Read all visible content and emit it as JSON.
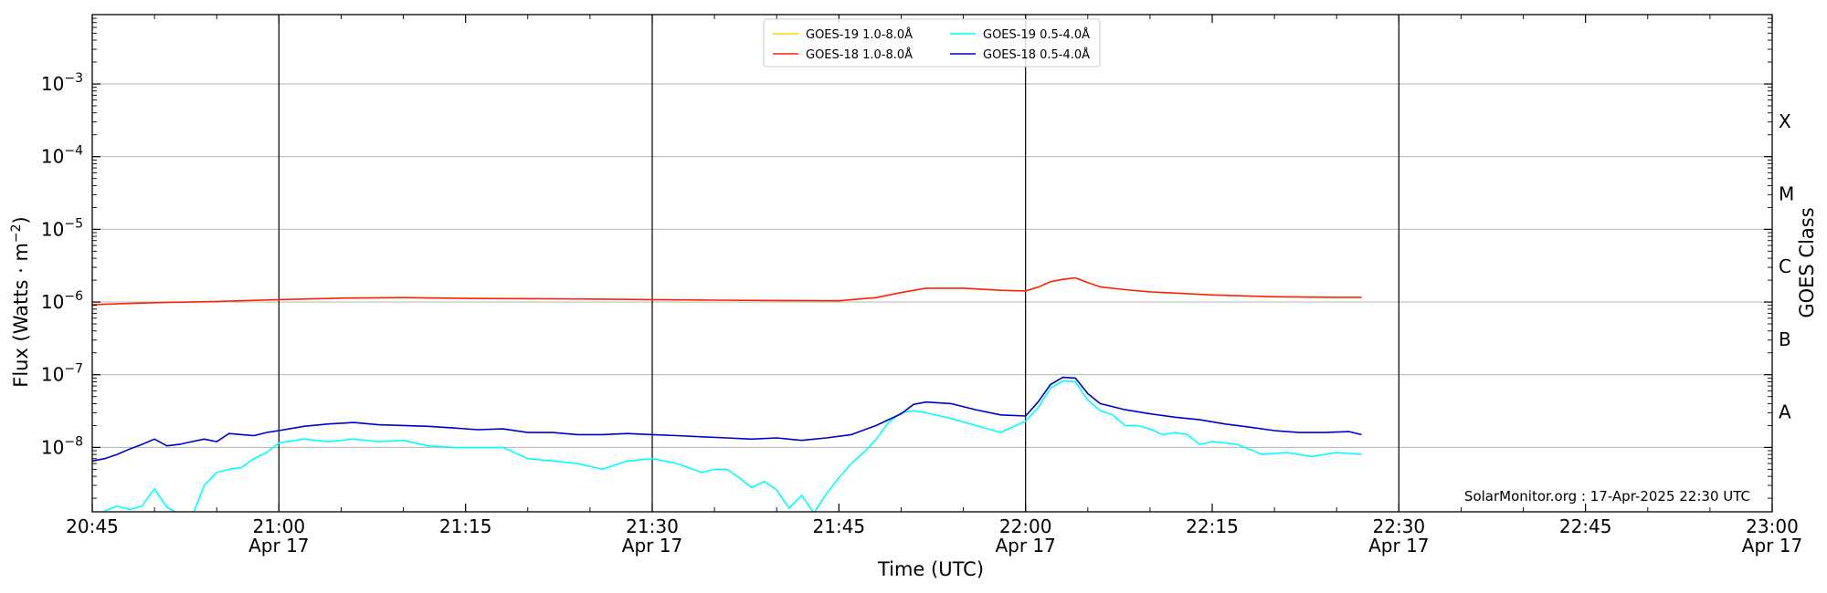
{
  "chart_data": {
    "type": "line",
    "xlabel": "Time (UTC)",
    "ylabel": "Flux (Watts · m⁻²)",
    "y2label": "GOES Class",
    "yscale": "log",
    "ylim": [
      1.3e-09,
      0.009
    ],
    "xlim": [
      "20:45",
      "23:00"
    ],
    "x_ticks": [
      {
        "t": "20:45",
        "line1": "20:45",
        "line2": ""
      },
      {
        "t": "21:00",
        "line1": "21:00",
        "line2": "Apr 17"
      },
      {
        "t": "21:15",
        "line1": "21:15",
        "line2": ""
      },
      {
        "t": "21:30",
        "line1": "21:30",
        "line2": "Apr 17"
      },
      {
        "t": "21:45",
        "line1": "21:45",
        "line2": ""
      },
      {
        "t": "22:00",
        "line1": "22:00",
        "line2": "Apr 17"
      },
      {
        "t": "22:15",
        "line1": "22:15",
        "line2": ""
      },
      {
        "t": "22:30",
        "line1": "22:30",
        "line2": "Apr 17"
      },
      {
        "t": "22:45",
        "line1": "22:45",
        "line2": ""
      },
      {
        "t": "23:00",
        "line1": "23:00",
        "line2": "Apr 17"
      }
    ],
    "y_ticks": [
      {
        "v": 1e-08,
        "base": "10",
        "exp": "−8"
      },
      {
        "v": 1e-07,
        "base": "10",
        "exp": "−7"
      },
      {
        "v": 1e-06,
        "base": "10",
        "exp": "−6"
      },
      {
        "v": 1e-05,
        "base": "10",
        "exp": "−5"
      },
      {
        "v": 0.0001,
        "base": "10",
        "exp": "−4"
      },
      {
        "v": 0.001,
        "base": "10",
        "exp": "−3"
      }
    ],
    "goes_classes": [
      {
        "label": "A",
        "v": 3.16e-08
      },
      {
        "label": "B",
        "v": 3.16e-07
      },
      {
        "label": "C",
        "v": 3.16e-06
      },
      {
        "label": "M",
        "v": 3.16e-05
      },
      {
        "label": "X",
        "v": 0.000316
      }
    ],
    "vlines": [
      "21:00",
      "21:30",
      "22:00",
      "22:30"
    ],
    "grid": "horizontal",
    "legend_position": "top-center",
    "credit": "SolarMonitor.org : 17-Apr-2025 22:30 UTC",
    "series": [
      {
        "name": "GOES-19 1.0-8.0Å",
        "color": "#ffd700",
        "x": [],
        "values": []
      },
      {
        "name": "GOES-19 0.5-4.0Å",
        "color": "#00ffff",
        "x": [
          "20:46",
          "20:47",
          "20:48",
          "20:49",
          "20:50",
          "20:51",
          "20:52",
          "20:53",
          "20:54",
          "20:55",
          "20:56",
          "20:57",
          "20:58",
          "20:59",
          "21:00",
          "21:02",
          "21:04",
          "21:06",
          "21:08",
          "21:10",
          "21:12",
          "21:14",
          "21:16",
          "21:18",
          "21:20",
          "21:22",
          "21:24",
          "21:26",
          "21:28",
          "21:30",
          "21:32",
          "21:34",
          "21:35",
          "21:36",
          "21:37",
          "21:38",
          "21:39",
          "21:40",
          "21:41",
          "21:42",
          "21:43",
          "21:44",
          "21:45",
          "21:46",
          "21:47",
          "21:48",
          "21:49",
          "21:50",
          "21:51",
          "21:52",
          "21:54",
          "21:56",
          "21:58",
          "22:00",
          "22:01",
          "22:02",
          "22:03",
          "22:04",
          "22:05",
          "22:06",
          "22:07",
          "22:08",
          "22:09",
          "22:10",
          "22:11",
          "22:12",
          "22:13",
          "22:14",
          "22:15",
          "22:17",
          "22:19",
          "22:21",
          "22:23",
          "22:25",
          "22:27"
        ],
        "values": [
          1.35e-09,
          1.55e-09,
          1.4e-09,
          1.55e-09,
          2.7e-09,
          1.5e-09,
          1.2e-09,
          1.1e-09,
          3e-09,
          4.5e-09,
          5e-09,
          5.3e-09,
          7e-09,
          8.5e-09,
          1.15e-08,
          1.3e-08,
          1.2e-08,
          1.3e-08,
          1.2e-08,
          1.25e-08,
          1.05e-08,
          1e-08,
          1e-08,
          1e-08,
          7e-09,
          6.5e-09,
          6e-09,
          5e-09,
          6.5e-09,
          7e-09,
          6e-09,
          4.5e-09,
          5e-09,
          5e-09,
          3.8e-09,
          2.8e-09,
          3.4e-09,
          2.6e-09,
          1.45e-09,
          2.2e-09,
          1.25e-09,
          2.3e-09,
          3.8e-09,
          6e-09,
          8.5e-09,
          1.3e-08,
          2.2e-08,
          3e-08,
          3.2e-08,
          3e-08,
          2.5e-08,
          2e-08,
          1.6e-08,
          2.3e-08,
          3.5e-08,
          6.5e-08,
          8.2e-08,
          8e-08,
          4.5e-08,
          3.2e-08,
          2.8e-08,
          2e-08,
          2e-08,
          1.8e-08,
          1.5e-08,
          1.6e-08,
          1.5e-08,
          1.1e-08,
          1.2e-08,
          1.1e-08,
          8e-09,
          8.5e-09,
          7.5e-09,
          8.5e-09,
          8e-09
        ]
      },
      {
        "name": "GOES-18 1.0-8.0Å",
        "color": "#ff2200",
        "x": [
          "20:45",
          "20:50",
          "20:55",
          "21:00",
          "21:05",
          "21:10",
          "21:15",
          "21:20",
          "21:25",
          "21:30",
          "21:35",
          "21:40",
          "21:45",
          "21:48",
          "21:50",
          "21:52",
          "21:55",
          "21:58",
          "22:00",
          "22:01",
          "22:02",
          "22:03",
          "22:04",
          "22:05",
          "22:06",
          "22:08",
          "22:10",
          "22:15",
          "22:20",
          "22:25",
          "22:27"
        ],
        "values": [
          9.2e-07,
          9.8e-07,
          1.02e-06,
          1.08e-06,
          1.13e-06,
          1.15e-06,
          1.12e-06,
          1.11e-06,
          1.1e-06,
          1.08e-06,
          1.06e-06,
          1.05e-06,
          1.04e-06,
          1.15e-06,
          1.35e-06,
          1.55e-06,
          1.55e-06,
          1.45e-06,
          1.42e-06,
          1.6e-06,
          1.9e-06,
          2.05e-06,
          2.15e-06,
          1.85e-06,
          1.62e-06,
          1.48e-06,
          1.38e-06,
          1.25e-06,
          1.18e-06,
          1.16e-06,
          1.16e-06
        ]
      },
      {
        "name": "GOES-18 0.5-4.0Å",
        "color": "#0000cc",
        "x": [
          "20:45",
          "20:46",
          "20:47",
          "20:48",
          "20:49",
          "20:50",
          "20:51",
          "20:52",
          "20:53",
          "20:54",
          "20:55",
          "20:56",
          "20:57",
          "20:58",
          "20:59",
          "21:00",
          "21:02",
          "21:04",
          "21:06",
          "21:08",
          "21:10",
          "21:12",
          "21:14",
          "21:16",
          "21:18",
          "21:20",
          "21:22",
          "21:24",
          "21:26",
          "21:28",
          "21:30",
          "21:32",
          "21:34",
          "21:36",
          "21:38",
          "21:40",
          "21:42",
          "21:44",
          "21:46",
          "21:48",
          "21:50",
          "21:51",
          "21:52",
          "21:54",
          "21:56",
          "21:58",
          "22:00",
          "22:01",
          "22:02",
          "22:03",
          "22:04",
          "22:05",
          "22:06",
          "22:08",
          "22:10",
          "22:12",
          "22:14",
          "22:16",
          "22:18",
          "22:20",
          "22:22",
          "22:24",
          "22:26",
          "22:27"
        ],
        "values": [
          6.5e-09,
          7e-09,
          8e-09,
          9.5e-09,
          1.1e-08,
          1.3e-08,
          1.05e-08,
          1.1e-08,
          1.2e-08,
          1.3e-08,
          1.2e-08,
          1.55e-08,
          1.5e-08,
          1.45e-08,
          1.6e-08,
          1.7e-08,
          1.95e-08,
          2.1e-08,
          2.2e-08,
          2.05e-08,
          2e-08,
          1.95e-08,
          1.85e-08,
          1.75e-08,
          1.8e-08,
          1.6e-08,
          1.6e-08,
          1.5e-08,
          1.5e-08,
          1.55e-08,
          1.5e-08,
          1.45e-08,
          1.4e-08,
          1.35e-08,
          1.3e-08,
          1.35e-08,
          1.25e-08,
          1.35e-08,
          1.5e-08,
          2e-08,
          2.9e-08,
          3.9e-08,
          4.2e-08,
          4e-08,
          3.3e-08,
          2.8e-08,
          2.7e-08,
          4.2e-08,
          7.3e-08,
          9.2e-08,
          9e-08,
          5.5e-08,
          4e-08,
          3.3e-08,
          2.9e-08,
          2.6e-08,
          2.4e-08,
          2.1e-08,
          1.9e-08,
          1.7e-08,
          1.6e-08,
          1.6e-08,
          1.65e-08,
          1.5e-08
        ]
      }
    ]
  }
}
